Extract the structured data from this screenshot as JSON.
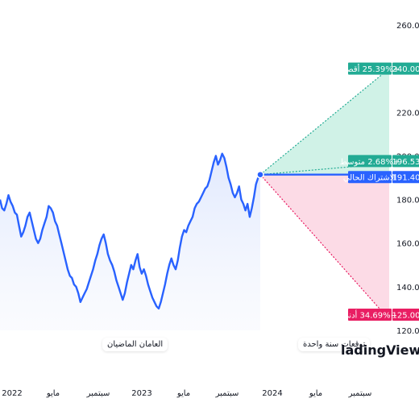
{
  "chart_data": {
    "type": "line",
    "y_axis": {
      "ticks": [
        260,
        240,
        220,
        200,
        180,
        160,
        140,
        120
      ],
      "range": [
        120,
        260
      ],
      "position": "right"
    },
    "x_axis": {
      "ticks": [
        "2022",
        "مايو",
        "سبتمبر",
        "2023",
        "مايو",
        "سبتمبر",
        "2024",
        "مايو",
        "سبتمبر"
      ]
    },
    "history": [
      180,
      176,
      175,
      178,
      182,
      179,
      177,
      174,
      173,
      168,
      163,
      165,
      168,
      172,
      174,
      170,
      166,
      162,
      160,
      162,
      166,
      169,
      172,
      177,
      176,
      174,
      170,
      168,
      164,
      160,
      156,
      152,
      148,
      145,
      144,
      141,
      140,
      137,
      133,
      135,
      137,
      139,
      142,
      145,
      148,
      152,
      155,
      159,
      162,
      164,
      160,
      155,
      152,
      150,
      147,
      143,
      140,
      137,
      134,
      137,
      142,
      146,
      150,
      148,
      152,
      155,
      149,
      146,
      148,
      145,
      141,
      138,
      135,
      133,
      131,
      130,
      133,
      137,
      141,
      146,
      150,
      153,
      150,
      148,
      152,
      158,
      163,
      166,
      165,
      168,
      170,
      172,
      176,
      178,
      179,
      181,
      183,
      185,
      186,
      189,
      193,
      197,
      200,
      196,
      198,
      201,
      199,
      195,
      190,
      187,
      183,
      181,
      183,
      186,
      180,
      178,
      175,
      178,
      172,
      176,
      181,
      187,
      190,
      191.4
    ],
    "current": {
      "value": 191.4,
      "value_label": "191.40",
      "label": "الاشتراك الحالي"
    },
    "forecast": [
      {
        "id": "max",
        "label": "+25.39% أقصى",
        "value": 240,
        "value_label": "240.00",
        "color": "#22ab94"
      },
      {
        "id": "avg",
        "label": "+2.68% متوسط",
        "value": 196.53,
        "value_label": "196.53",
        "color": "#22ab94"
      },
      {
        "id": "min",
        "label": "−34.69% أدنى",
        "value": 125,
        "value_label": "125.00",
        "color": "#e91e63"
      }
    ],
    "colors": {
      "line": "#2962ff",
      "up_fill": "#c8f0e3",
      "down_fill": "#fbd5e2",
      "history_fill": "#e8eefe"
    },
    "grid": false
  },
  "labels": {
    "past_period": "العامان الماضيان",
    "forecast_period": "توقعات سنة واحدة",
    "watermark": "TradingView"
  }
}
